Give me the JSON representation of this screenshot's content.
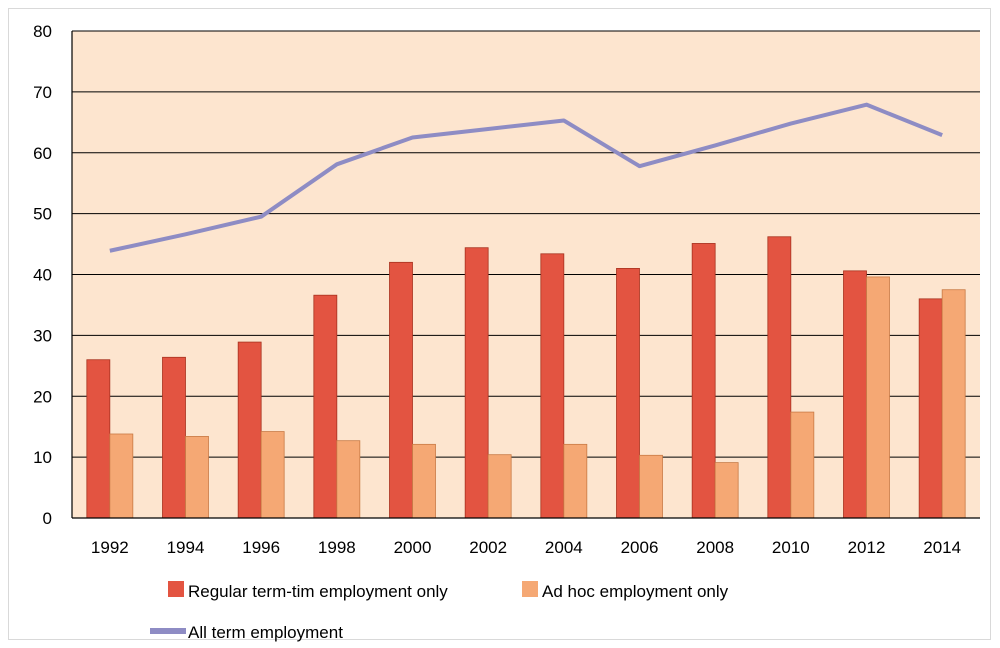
{
  "chart_data": {
    "type": "bar",
    "categories": [
      "1992",
      "1994",
      "1996",
      "1998",
      "2000",
      "2002",
      "2004",
      "2006",
      "2008",
      "2010",
      "2012",
      "2014"
    ],
    "series": [
      {
        "name": "Regular term-tim employment only",
        "kind": "bar",
        "color": "#e35441",
        "values": [
          26,
          26.4,
          28.9,
          36.6,
          42,
          44.4,
          43.4,
          41,
          45.1,
          46.2,
          40.6,
          36
        ]
      },
      {
        "name": "Ad hoc employment only",
        "kind": "bar",
        "color": "#f5a874",
        "values": [
          13.8,
          13.4,
          14.2,
          12.7,
          12.1,
          10.4,
          12.1,
          10.3,
          9.1,
          17.4,
          39.6,
          37.5
        ]
      },
      {
        "name": "All term employment",
        "kind": "line",
        "color": "#8e8cc4",
        "values": [
          43.9,
          46.6,
          49.5,
          58.1,
          62.5,
          63.9,
          65.3,
          57.8,
          61.2,
          64.8,
          67.9,
          62.9
        ]
      }
    ],
    "y_ticks": [
      "0",
      "10",
      "20",
      "30",
      "40",
      "50",
      "60",
      "70",
      "80"
    ],
    "ylim": [
      0,
      80
    ],
    "grid": true,
    "plot_background": "#fde5cf",
    "legend_position": "bottom"
  }
}
